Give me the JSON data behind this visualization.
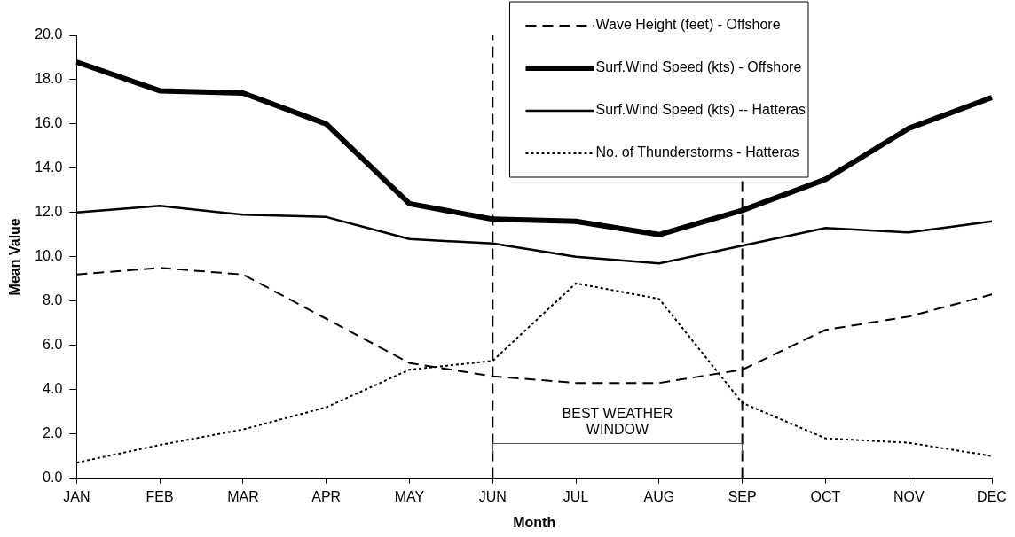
{
  "chart_data": {
    "type": "line",
    "xlabel": "Month",
    "ylabel": "Mean Value",
    "categories": [
      "JAN",
      "FEB",
      "MAR",
      "APR",
      "MAY",
      "JUN",
      "JUL",
      "AUG",
      "SEP",
      "OCT",
      "NOV",
      "DEC"
    ],
    "ylim": [
      0,
      20
    ],
    "yticks": [
      {
        "value": 0,
        "label": "0.0"
      },
      {
        "value": 2,
        "label": "2.0"
      },
      {
        "value": 4,
        "label": "4.0"
      },
      {
        "value": 6,
        "label": "6.0"
      },
      {
        "value": 8,
        "label": "8.0"
      },
      {
        "value": 10,
        "label": "10.0"
      },
      {
        "value": 12,
        "label": "12.0"
      },
      {
        "value": 14,
        "label": "14.0"
      },
      {
        "value": 16,
        "label": "16.0"
      },
      {
        "value": 18,
        "label": "18.0"
      },
      {
        "value": 20,
        "label": "20.0"
      }
    ],
    "series": [
      {
        "name": "Wave Height (feet) - Offshore",
        "color": "#000000",
        "line_style": "dashed",
        "values": [
          9.2,
          9.5,
          9.2,
          7.2,
          5.2,
          4.6,
          4.3,
          4.3,
          4.9,
          6.7,
          7.3,
          8.3
        ]
      },
      {
        "name": "Surf.Wind Speed (kts) - Offshore",
        "color": "#000000",
        "line_style": "solid",
        "values": [
          18.8,
          17.5,
          17.4,
          16.0,
          12.4,
          11.7,
          11.6,
          11.0,
          12.1,
          13.5,
          15.8,
          17.2
        ]
      },
      {
        "name": "Surf.Wind Speed (kts) -- Hatteras",
        "color": "#000000",
        "line_style": "solid",
        "values": [
          12.0,
          12.3,
          11.9,
          11.8,
          10.8,
          10.6,
          10.0,
          9.7,
          10.5,
          11.3,
          11.1,
          11.6
        ]
      },
      {
        "name": "No. of Thunderstorms - Hatteras",
        "color": "#000000",
        "line_style": "dotted",
        "values": [
          0.7,
          1.5,
          2.2,
          3.2,
          4.9,
          5.3,
          8.8,
          8.1,
          3.4,
          1.8,
          1.6,
          1.0
        ]
      }
    ],
    "ref_lines": [
      {
        "axis": "x",
        "value": "JUN",
        "line_style": "dashed"
      },
      {
        "axis": "x",
        "value": "SEP",
        "line_style": "dashed"
      }
    ],
    "annotations": [
      "BEST WEATHER WINDOW"
    ],
    "legend": "top right",
    "marker": "none",
    "grid": false
  }
}
